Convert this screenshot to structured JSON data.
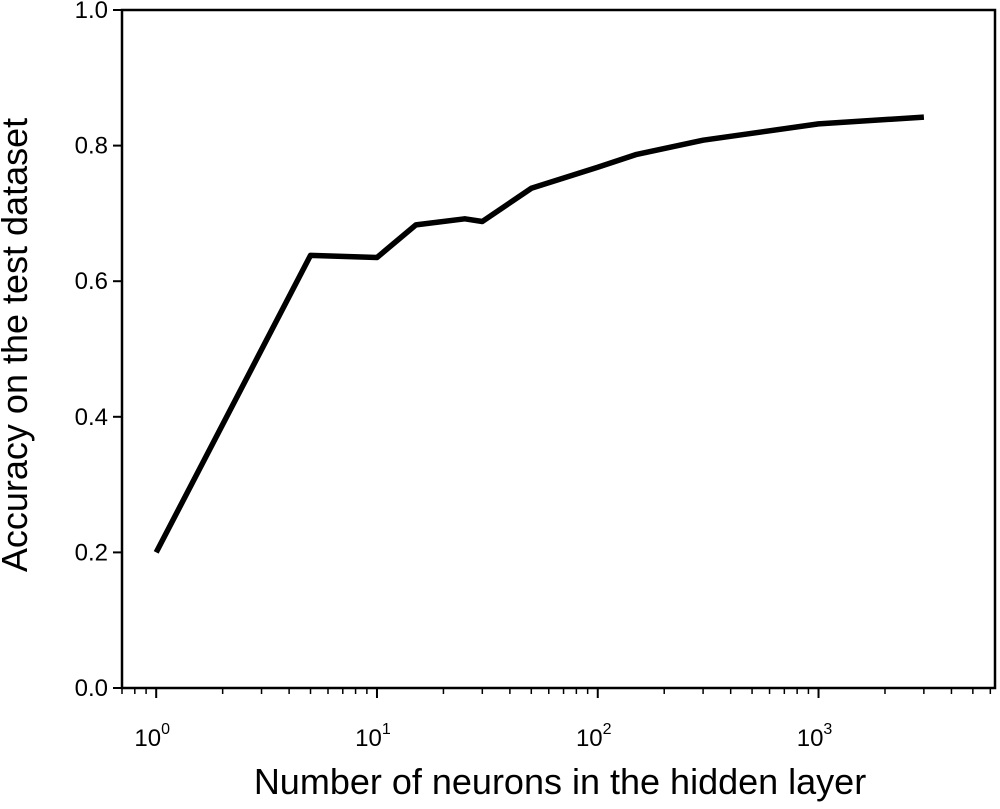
{
  "chart_data": {
    "type": "line",
    "title": "",
    "xlabel": "Number of neurons in the hidden layer",
    "ylabel": "Accuracy on the test dataset",
    "x_scale": "log",
    "xlim": [
      0.7,
      6300
    ],
    "ylim": [
      0.0,
      1.0
    ],
    "grid": false,
    "legend": "none",
    "x_ticks": [
      {
        "value": 1,
        "base": "10",
        "exp": "0"
      },
      {
        "value": 10,
        "base": "10",
        "exp": "1"
      },
      {
        "value": 100,
        "base": "10",
        "exp": "2"
      },
      {
        "value": 1000,
        "base": "10",
        "exp": "3"
      }
    ],
    "y_ticks": [
      {
        "value": 0.0,
        "label": "0.0"
      },
      {
        "value": 0.2,
        "label": "0.2"
      },
      {
        "value": 0.4,
        "label": "0.4"
      },
      {
        "value": 0.6,
        "label": "0.6"
      },
      {
        "value": 0.8,
        "label": "0.8"
      },
      {
        "value": 1.0,
        "label": "1.0"
      }
    ],
    "series": [
      {
        "color": "#000000",
        "x": [
          1,
          5,
          10,
          15,
          25,
          30,
          50,
          100,
          150,
          300,
          1000,
          3000
        ],
        "y": [
          0.2,
          0.638,
          0.635,
          0.683,
          0.692,
          0.688,
          0.737,
          0.768,
          0.787,
          0.808,
          0.832,
          0.842
        ]
      }
    ]
  }
}
